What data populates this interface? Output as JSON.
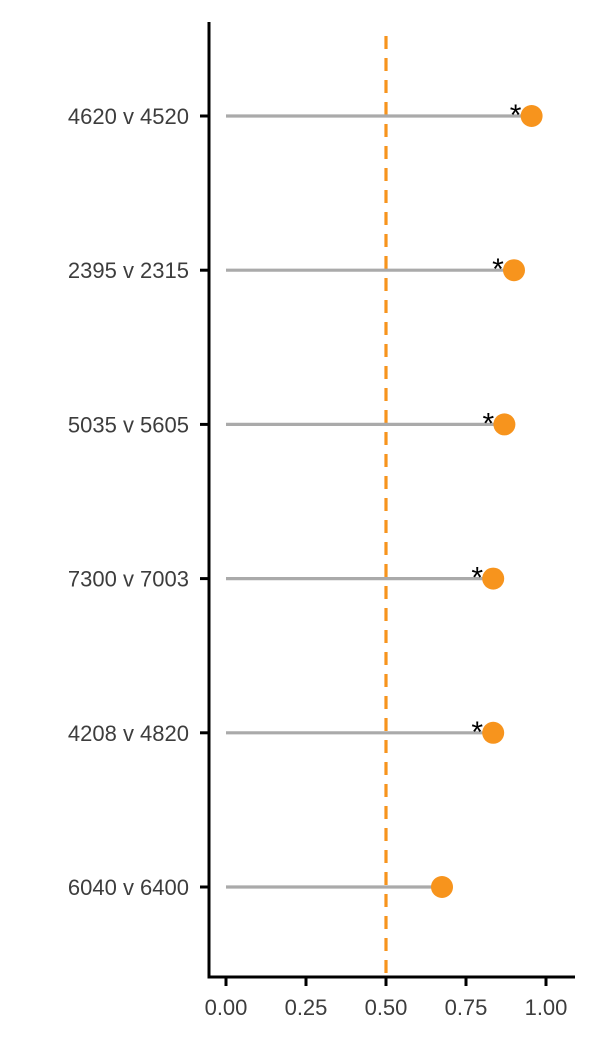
{
  "chart_data": {
    "type": "lollipop",
    "title": "",
    "xlabel": "",
    "ylabel": "",
    "xlim": [
      -0.05,
      1.1
    ],
    "x_ticks": [
      0.0,
      0.25,
      0.5,
      0.75,
      1.0
    ],
    "x_tick_labels": [
      "0.00",
      "0.25",
      "0.50",
      "0.75",
      "1.00"
    ],
    "reference_line": {
      "x": 0.5,
      "style": "dashed",
      "color": "#F7941D"
    },
    "categories": [
      "4620 v 4520",
      "2395 v 2315",
      "5035 v 5605",
      "7300 v 7003",
      "4208 v 4820",
      "6040 v 6400"
    ],
    "values": [
      0.955,
      0.9,
      0.87,
      0.835,
      0.835,
      0.675
    ],
    "significance": [
      "*",
      "*",
      "*",
      "*",
      "*",
      ""
    ],
    "stem_color": "#AAAAAA",
    "point_color": "#F7941D",
    "grid": false,
    "legend": "none"
  }
}
